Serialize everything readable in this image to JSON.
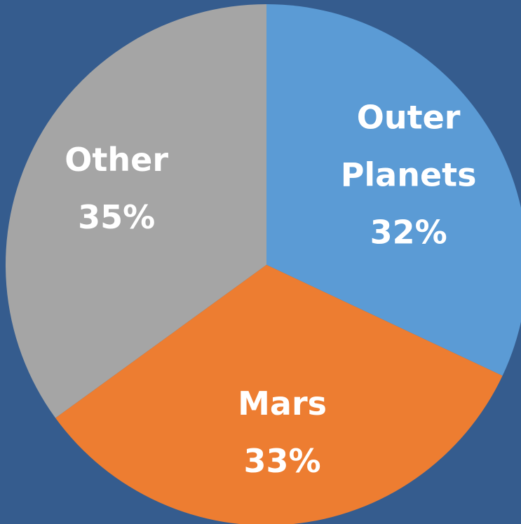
{
  "background_color": "#355c8e",
  "chart_data": {
    "type": "pie",
    "title": "",
    "slices": [
      {
        "label_lines": [
          "Outer",
          "Planets"
        ],
        "value": 32,
        "value_label": "32%",
        "color": "#5b9bd5"
      },
      {
        "label_lines": [
          "Mars"
        ],
        "value": 33,
        "value_label": "33%",
        "color": "#ed7d31"
      },
      {
        "label_lines": [
          "Other"
        ],
        "value": 35,
        "value_label": "35%",
        "color": "#a5a5a5"
      }
    ],
    "start_angle_deg": 0,
    "direction": "clockwise",
    "legend": "none",
    "data_labels": "inside"
  }
}
